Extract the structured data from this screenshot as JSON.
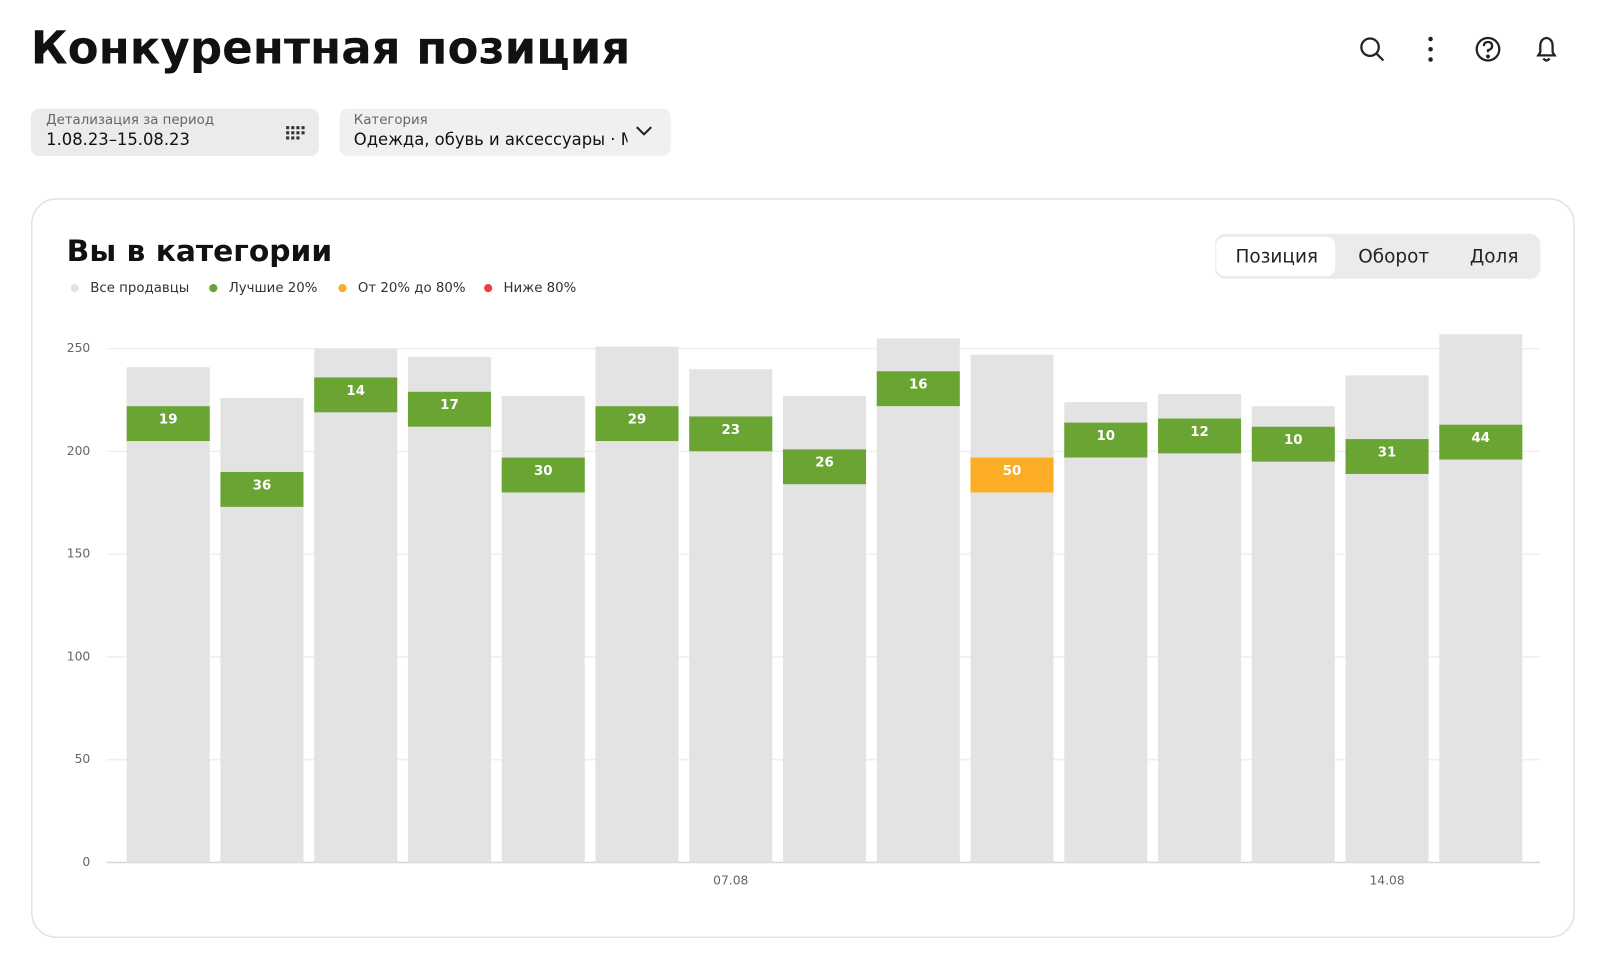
{
  "header": {
    "title": "Конкурентная позиция"
  },
  "filters": [
    {
      "label": "Детализация за период",
      "value": "1.08.23–15.08.23"
    },
    {
      "label": "Категория",
      "value": "Одежда, обувь и аксессуары · Мужская одежда"
    }
  ],
  "tabs": {
    "items": [
      "Позиция",
      "Оборот",
      "Доля"
    ],
    "selected": 0
  },
  "chart_data": {
    "type": "position-bar",
    "title": "Вы в категории",
    "legend": [
      {
        "name": "Все продавцы",
        "color": "#e3e3e3"
      },
      {
        "name": "Лучшие 20%",
        "color": "#6aa534"
      },
      {
        "name": "От 20% до 80%",
        "color": "#fbad26"
      },
      {
        "name": "Ниже 80%",
        "color": "#ee3f3f"
      }
    ],
    "categories": [
      null,
      null,
      null,
      null,
      null,
      null,
      "07.08",
      null,
      null,
      null,
      null,
      null,
      null,
      "14.08",
      null
    ],
    "totals": [
      241,
      226,
      250,
      246,
      227,
      251,
      240,
      227,
      255,
      247,
      224,
      228,
      222,
      237,
      257
    ],
    "positions": [
      19,
      36,
      14,
      17,
      30,
      29,
      23,
      26,
      16,
      50,
      10,
      12,
      10,
      31,
      44
    ],
    "position_tiers": [
      1,
      1,
      1,
      1,
      1,
      1,
      1,
      1,
      1,
      2,
      1,
      1,
      1,
      1,
      1
    ],
    "ylim": [
      0,
      250
    ],
    "yticks": [
      0,
      50,
      100,
      150,
      200,
      250
    ],
    "grid": true
  }
}
